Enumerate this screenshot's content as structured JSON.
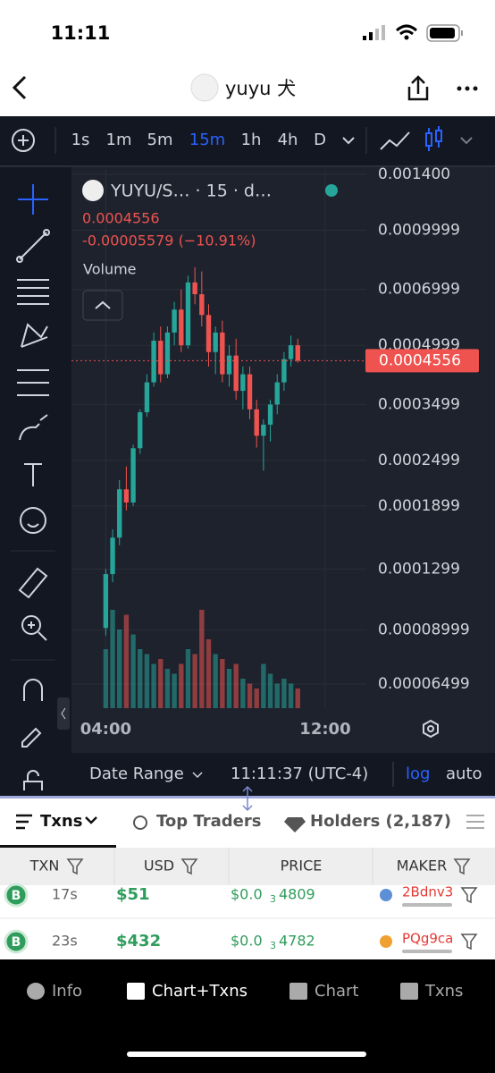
{
  "status": {
    "time": "11:11"
  },
  "header": {
    "title": "yuyu 犬"
  },
  "toolbar": {
    "intervals": [
      "1s",
      "1m",
      "5m",
      "15m",
      "1h",
      "4h",
      "D"
    ],
    "active": "15m"
  },
  "chart_data": {
    "type": "candlestick",
    "title": "YUYU/S… · 15 · d…",
    "last_price": 0.0004556,
    "change_label": "-0.00005579 (−10.91%)",
    "volume_label": "Volume",
    "log_scale": true,
    "up_color": "#26a69a",
    "down_color": "#ef5350",
    "ylim": [
      5.62e-05,
      0.001438
    ],
    "yticks": [
      {
        "value": 0.0014,
        "label": "0.001400"
      },
      0.0009999,
      0.0006999,
      0.0004999,
      0.0003499,
      0.0002499,
      0.0001899,
      0.0001299,
      8.999e-05,
      6.499e-05
    ],
    "xlim": [
      -5,
      38
    ],
    "xticks": [
      {
        "value": 0,
        "label": "04:00"
      },
      {
        "value": 32,
        "label": "12:00"
      }
    ],
    "candles": [
      [
        9.11e-05,
        0.00013,
        8.7e-05,
        0.000126
      ],
      [
        0.000126,
        0.000165,
        0.00012,
        0.000157
      ],
      [
        0.000157,
        0.000222,
        0.00015,
        0.00021
      ],
      [
        0.00021,
        0.000241,
        0.000185,
        0.000194
      ],
      [
        0.000194,
        0.000275,
        0.00019,
        0.000269
      ],
      [
        0.000269,
        0.00034,
        0.00026,
        0.000334
      ],
      [
        0.000334,
        0.00042,
        0.000325,
        0.0004
      ],
      [
        0.0004,
        0.00054,
        0.00039,
        0.000514
      ],
      [
        0.000514,
        0.00056,
        0.0004,
        0.00042
      ],
      [
        0.00042,
        0.00056,
        0.00041,
        0.00054
      ],
      [
        0.00054,
        0.00065,
        0.0005,
        0.00062
      ],
      [
        0.00062,
        0.0007,
        0.00048,
        0.0005
      ],
      [
        0.0005,
        0.00076,
        0.00049,
        0.00073
      ],
      [
        0.00073,
        0.0008,
        0.00064,
        0.00068
      ],
      [
        0.00068,
        0.00078,
        0.00056,
        0.0006
      ],
      [
        0.0006,
        0.00064,
        0.00044,
        0.00048
      ],
      [
        0.00048,
        0.00056,
        0.00042,
        0.00054
      ],
      [
        0.00054,
        0.00058,
        0.0004,
        0.00042
      ],
      [
        0.00042,
        0.0005,
        0.00039,
        0.00047
      ],
      [
        0.00047,
        0.00052,
        0.00036,
        0.00038
      ],
      [
        0.00038,
        0.00044,
        0.00034,
        0.00042
      ],
      [
        0.00042,
        0.00044,
        0.00032,
        0.00034
      ],
      [
        0.00034,
        0.00036,
        0.00027,
        0.00029
      ],
      [
        0.00029,
        0.00032,
        0.000235,
        0.00031
      ],
      [
        0.00031,
        0.00036,
        0.00028,
        0.00035
      ],
      [
        0.00035,
        0.00042,
        0.00033,
        0.0004
      ],
      [
        0.0004,
        0.00048,
        0.00038,
        0.00046
      ],
      [
        0.00046,
        0.00053,
        0.00044,
        0.0005
      ],
      [
        0.0005,
        0.00052,
        0.00045,
        0.0004556
      ]
    ],
    "volumes": [
      60,
      100,
      80,
      95,
      75,
      60,
      55,
      45,
      50,
      40,
      35,
      45,
      60,
      55,
      100,
      70,
      55,
      50,
      40,
      45,
      30,
      25,
      20,
      45,
      35,
      25,
      30,
      25,
      20
    ]
  },
  "footer": {
    "date_range": "Date Range",
    "time": "11:11:37 (UTC-4)",
    "log": "log",
    "auto": "auto"
  },
  "tabs": [
    "Txns",
    "Top Traders",
    "Holders (2,187)"
  ],
  "table": {
    "columns": [
      "TXN",
      "USD",
      "PRICE",
      "MAKER"
    ],
    "rows": [
      {
        "type": "B",
        "age": "17s",
        "usd": "$51",
        "price": [
          "$0.0",
          "3",
          "4809"
        ],
        "maker": "2Bdnv3"
      },
      {
        "type": "B",
        "age": "23s",
        "usd": "$432",
        "price": [
          "$0.0",
          "3",
          "4782"
        ],
        "maker": "PQg9ca"
      }
    ]
  },
  "nav": [
    "Info",
    "Chart+Txns",
    "Chart",
    "Txns"
  ]
}
